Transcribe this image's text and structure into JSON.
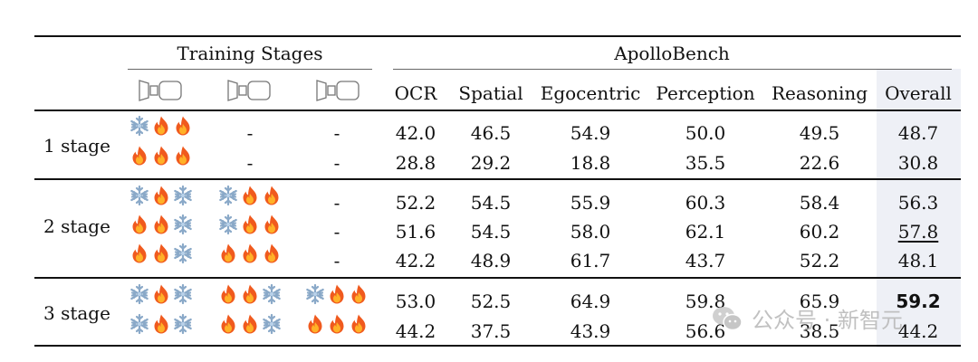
{
  "header": {
    "training_stages": "Training Stages",
    "apollobench": "ApolloBench",
    "columns": [
      "OCR",
      "Spatial",
      "Egocentric",
      "Perception",
      "Reasoning",
      "Overall"
    ]
  },
  "stage_icons": [
    "model-components-icon",
    "model-components-icon",
    "model-components-icon"
  ],
  "groups": [
    {
      "label": "1 stage",
      "rows": [
        {
          "stages": [
            [
              "snowflake",
              "fire",
              "fire"
            ],
            "-",
            "-"
          ],
          "values": [
            "42.0",
            "46.5",
            "54.9",
            "50.0",
            "49.5",
            "48.7"
          ]
        },
        {
          "stages": [
            [
              "fire",
              "fire",
              "fire"
            ],
            "-",
            "-"
          ],
          "values": [
            "28.8",
            "29.2",
            "18.8",
            "35.5",
            "22.6",
            "30.8"
          ]
        }
      ]
    },
    {
      "label": "2 stage",
      "rows": [
        {
          "stages": [
            [
              "snowflake",
              "fire",
              "snowflake"
            ],
            [
              "snowflake",
              "fire",
              "fire"
            ],
            "-"
          ],
          "values": [
            "52.2",
            "54.5",
            "55.9",
            "60.3",
            "58.4",
            "56.3"
          ]
        },
        {
          "stages": [
            [
              "fire",
              "fire",
              "snowflake"
            ],
            [
              "snowflake",
              "fire",
              "fire"
            ],
            "-"
          ],
          "values": [
            "51.6",
            "54.5",
            "58.0",
            "62.1",
            "60.2",
            "57.8"
          ]
        },
        {
          "stages": [
            [
              "fire",
              "fire",
              "snowflake"
            ],
            [
              "fire",
              "fire",
              "fire"
            ],
            "-"
          ],
          "values": [
            "42.2",
            "48.9",
            "61.7",
            "43.7",
            "52.2",
            "48.1"
          ]
        }
      ]
    },
    {
      "label": "3 stage",
      "rows": [
        {
          "stages": [
            [
              "snowflake",
              "fire",
              "snowflake"
            ],
            [
              "fire",
              "fire",
              "snowflake"
            ],
            [
              "snowflake",
              "fire",
              "fire"
            ]
          ],
          "values": [
            "53.0",
            "52.5",
            "64.9",
            "59.8",
            "65.9",
            "59.2"
          ]
        },
        {
          "stages": [
            [
              "snowflake",
              "fire",
              "snowflake"
            ],
            [
              "fire",
              "fire",
              "snowflake"
            ],
            [
              "fire",
              "fire",
              "fire"
            ]
          ],
          "values": [
            "44.2",
            "37.5",
            "43.9",
            "56.6",
            "38.5",
            "44.2"
          ]
        }
      ]
    }
  ],
  "emphasis": {
    "bold": "59.2",
    "underline": "57.8"
  },
  "watermark": {
    "text": "公众号 · 新智元"
  }
}
